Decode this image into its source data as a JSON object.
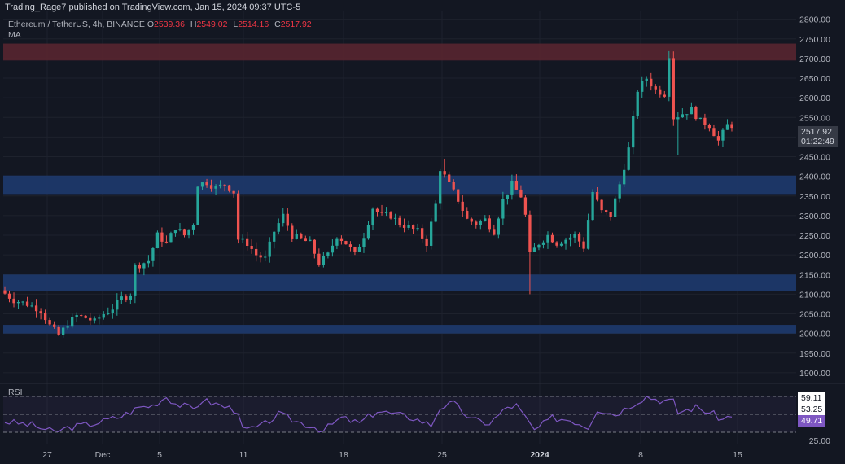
{
  "header": {
    "published": "Trading_Rage7 published on TradingView.com, Jan 15, 2024 09:37 UTC-5"
  },
  "legend": {
    "symbol": "Ethereum / TetherUS, 4h, BINANCE",
    "open_label": "O",
    "open": "2539.36",
    "high_label": "H",
    "high": "2549.02",
    "low_label": "L",
    "low": "2514.16",
    "close_label": "C",
    "close": "2517.92",
    "indicator": "MA"
  },
  "price_badge": {
    "price": "2517.92",
    "countdown": "01:22:49"
  },
  "rsi": {
    "label": "RSI",
    "badges": [
      "59.11",
      "53.25",
      "49.71"
    ],
    "axis_label": "25.00"
  },
  "colors": {
    "background": "#131722",
    "up": "#26a69a",
    "down": "#ef5350",
    "resistance_zone": "#5c2630",
    "support_zone": "#1e3a6e",
    "rsi_line": "#7e57c2"
  },
  "chart_data": {
    "type": "candlestick",
    "y_axis_ticks": [
      1900,
      1950,
      2000,
      2050,
      2100,
      2150,
      2200,
      2250,
      2300,
      2350,
      2400,
      2450,
      2500,
      2550,
      2600,
      2650,
      2700,
      2750,
      2800
    ],
    "ylim": [
      1875,
      2820
    ],
    "x_ticks": [
      "27",
      "Dec",
      "5",
      "11",
      "18",
      "25",
      "2024",
      "8",
      "15"
    ],
    "zones": [
      {
        "kind": "resistance",
        "from": 2695,
        "to": 2738
      },
      {
        "kind": "support",
        "from": 2355,
        "to": 2402
      },
      {
        "kind": "support",
        "from": 2108,
        "to": 2150
      },
      {
        "kind": "support",
        "from": 2000,
        "to": 2022
      }
    ],
    "price_path": [
      [
        0,
        2110
      ],
      [
        3,
        2085
      ],
      [
        6,
        2075
      ],
      [
        9,
        2060
      ],
      [
        11,
        2020
      ],
      [
        13,
        1995
      ],
      [
        15,
        2025
      ],
      [
        17,
        2045
      ],
      [
        19,
        2040
      ],
      [
        21,
        2030
      ],
      [
        23,
        2050
      ],
      [
        25,
        2065
      ],
      [
        27,
        2090
      ],
      [
        29,
        2100
      ],
      [
        30,
        2170
      ],
      [
        33,
        2185
      ],
      [
        35,
        2250
      ],
      [
        37,
        2230
      ],
      [
        39,
        2270
      ],
      [
        41,
        2250
      ],
      [
        43,
        2280
      ],
      [
        44,
        2380
      ],
      [
        46,
        2385
      ],
      [
        48,
        2370
      ],
      [
        50,
        2380
      ],
      [
        52,
        2360
      ],
      [
        53,
        2240
      ],
      [
        55,
        2230
      ],
      [
        57,
        2200
      ],
      [
        59,
        2190
      ],
      [
        61,
        2260
      ],
      [
        63,
        2300
      ],
      [
        65,
        2250
      ],
      [
        67,
        2240
      ],
      [
        69,
        2230
      ],
      [
        71,
        2180
      ],
      [
        73,
        2200
      ],
      [
        75,
        2250
      ],
      [
        77,
        2230
      ],
      [
        79,
        2200
      ],
      [
        81,
        2250
      ],
      [
        83,
        2320
      ],
      [
        85,
        2300
      ],
      [
        87,
        2300
      ],
      [
        89,
        2280
      ],
      [
        91,
        2270
      ],
      [
        93,
        2260
      ],
      [
        95,
        2230
      ],
      [
        97,
        2330
      ],
      [
        98,
        2420
      ],
      [
        100,
        2380
      ],
      [
        102,
        2340
      ],
      [
        104,
        2290
      ],
      [
        106,
        2280
      ],
      [
        108,
        2290
      ],
      [
        110,
        2260
      ],
      [
        112,
        2340
      ],
      [
        114,
        2380
      ],
      [
        116,
        2350
      ],
      [
        117,
        2300
      ],
      [
        118,
        2200
      ],
      [
        120,
        2230
      ],
      [
        122,
        2250
      ],
      [
        124,
        2230
      ],
      [
        126,
        2240
      ],
      [
        128,
        2250
      ],
      [
        130,
        2220
      ],
      [
        132,
        2360
      ],
      [
        134,
        2310
      ],
      [
        136,
        2300
      ],
      [
        138,
        2380
      ],
      [
        140,
        2470
      ],
      [
        142,
        2620
      ],
      [
        144,
        2650
      ],
      [
        146,
        2620
      ],
      [
        148,
        2610
      ],
      [
        149,
        2710
      ],
      [
        150,
        2550
      ],
      [
        152,
        2560
      ],
      [
        154,
        2570
      ],
      [
        156,
        2540
      ],
      [
        158,
        2530
      ],
      [
        160,
        2490
      ],
      [
        162,
        2530
      ]
    ],
    "rsi_values": [
      [
        0,
        42
      ],
      [
        6,
        38
      ],
      [
        11,
        30
      ],
      [
        14,
        35
      ],
      [
        20,
        40
      ],
      [
        26,
        48
      ],
      [
        30,
        58
      ],
      [
        33,
        60
      ],
      [
        36,
        70
      ],
      [
        38,
        62
      ],
      [
        42,
        56
      ],
      [
        44,
        66
      ],
      [
        48,
        60
      ],
      [
        52,
        54
      ],
      [
        53,
        32
      ],
      [
        57,
        36
      ],
      [
        61,
        50
      ],
      [
        65,
        42
      ],
      [
        69,
        36
      ],
      [
        71,
        32
      ],
      [
        75,
        46
      ],
      [
        79,
        40
      ],
      [
        83,
        54
      ],
      [
        87,
        50
      ],
      [
        91,
        46
      ],
      [
        95,
        38
      ],
      [
        97,
        58
      ],
      [
        100,
        62
      ],
      [
        104,
        44
      ],
      [
        108,
        40
      ],
      [
        112,
        58
      ],
      [
        114,
        60
      ],
      [
        118,
        32
      ],
      [
        122,
        46
      ],
      [
        126,
        44
      ],
      [
        130,
        36
      ],
      [
        132,
        56
      ],
      [
        136,
        50
      ],
      [
        140,
        62
      ],
      [
        143,
        70
      ],
      [
        146,
        66
      ],
      [
        149,
        64
      ],
      [
        150,
        52
      ],
      [
        154,
        58
      ],
      [
        158,
        50
      ],
      [
        160,
        44
      ],
      [
        162,
        50
      ]
    ],
    "rsi_levels": [
      70,
      50,
      30
    ]
  }
}
